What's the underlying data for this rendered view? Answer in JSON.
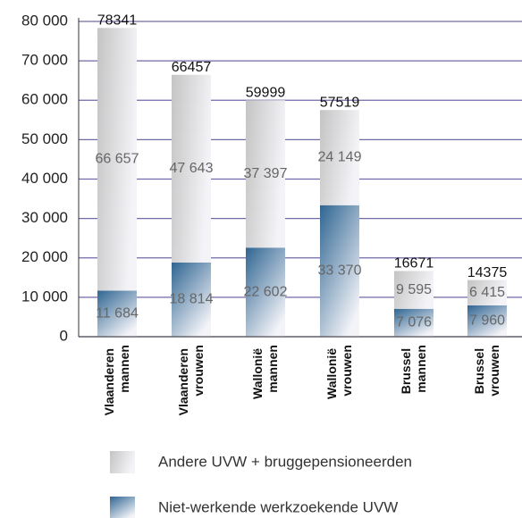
{
  "chart_data": {
    "type": "stacked_bar",
    "categories": [
      "Vlaanderen mannen",
      "Vlaanderen vrouwen",
      "Wallonië mannen",
      "Wallonië vrouwen",
      "Brussel mannen",
      "Brussel vrouwen"
    ],
    "series": [
      {
        "name": "Niet-werkende werkzoekende UVW",
        "color": "#2f6592",
        "values": [
          11684,
          18814,
          22602,
          33370,
          7076,
          7960
        ],
        "value_labels": [
          "11 684",
          "18 814",
          "22 602",
          "33 370",
          "7 076",
          "7 960"
        ]
      },
      {
        "name": "Andere UVW + bruggepensioneerden",
        "color": "#c4c4c4",
        "values": [
          66657,
          47643,
          37397,
          24149,
          9595,
          6415
        ],
        "value_labels": [
          "66 657",
          "47 643",
          "37 397",
          "24 149",
          "9 595",
          "6 415"
        ]
      }
    ],
    "totals": [
      78341,
      66457,
      59999,
      57519,
      16671,
      14375
    ],
    "ylim": [
      0,
      80000
    ],
    "yticks": [
      0,
      {
        "value": 10000,
        "label": "10 000"
      },
      {
        "value": 20000,
        "label": "20 000"
      },
      {
        "value": 30000,
        "label": "30 000"
      },
      {
        "value": 40000,
        "label": "40 000"
      },
      {
        "value": 50000,
        "label": "50 000"
      },
      {
        "value": 60000,
        "label": "60 000"
      },
      {
        "value": 70000,
        "label": "70 000"
      },
      {
        "value": 80000,
        "label": "80 000"
      }
    ],
    "grid": true,
    "grid_color": "#6f6aa8"
  }
}
